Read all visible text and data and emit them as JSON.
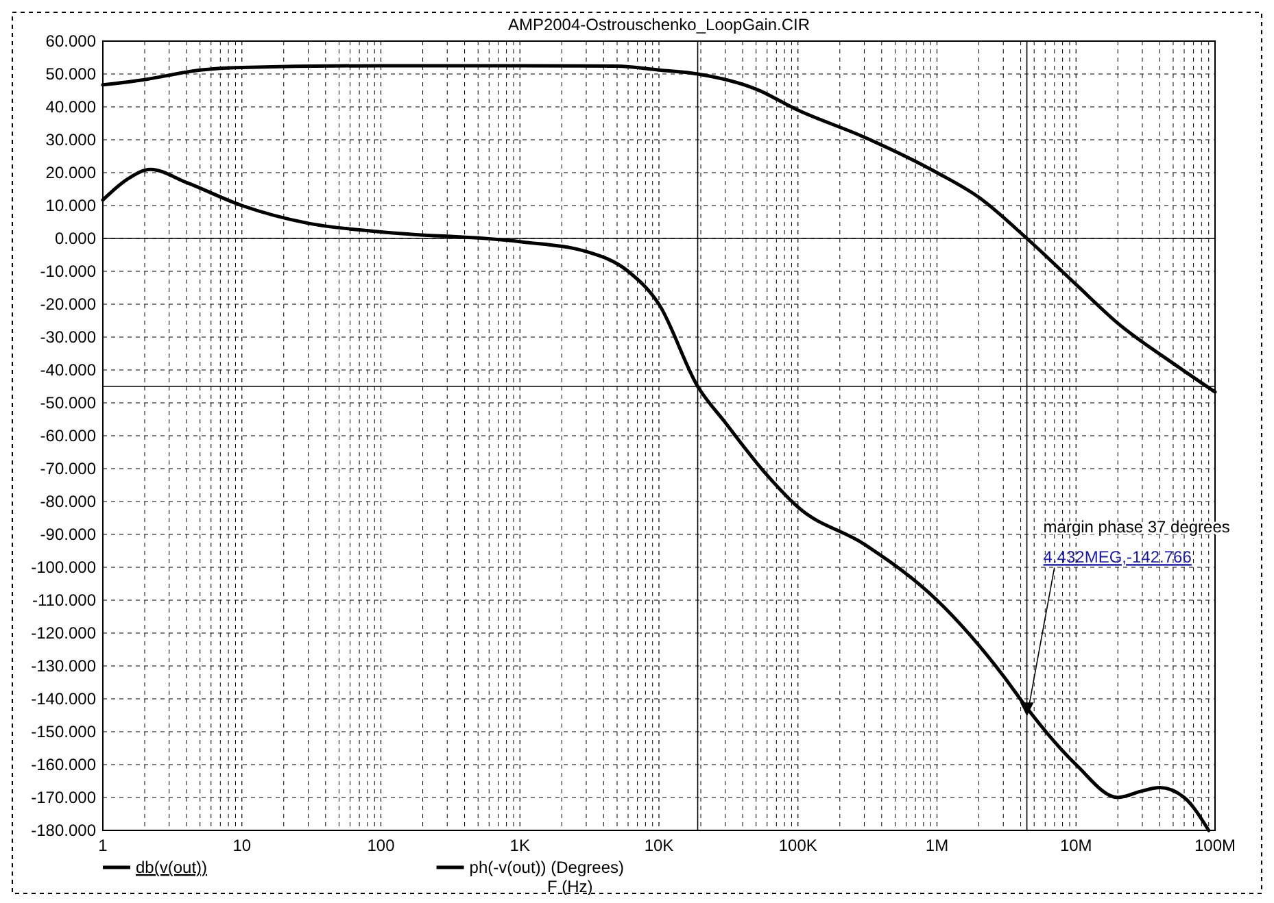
{
  "chart_data": {
    "type": "line",
    "title": "AMP2004-Ostrouschenko_LoopGain.CIR",
    "xlabel": "F (Hz)",
    "log": "x",
    "grid": true,
    "legend": "bottom",
    "line_style": "solid",
    "marker": "none",
    "xlim": [
      1,
      100000000
    ],
    "xticks": [
      {
        "value": 1,
        "label": "1"
      },
      {
        "value": 10,
        "label": "10"
      },
      {
        "value": 100,
        "label": "100"
      },
      {
        "value": 1000,
        "label": "1K"
      },
      {
        "value": 10000,
        "label": "10K"
      },
      {
        "value": 100000,
        "label": "100K"
      },
      {
        "value": 1000000,
        "label": "1M"
      },
      {
        "value": 10000000,
        "label": "10M"
      },
      {
        "value": 100000000,
        "label": "100M"
      }
    ],
    "ylim": [
      -180,
      60
    ],
    "yticks": [
      {
        "value": 60,
        "label": "60.000"
      },
      {
        "value": 50,
        "label": "50.000"
      },
      {
        "value": 40,
        "label": "40.000"
      },
      {
        "value": 30,
        "label": "30.000"
      },
      {
        "value": 20,
        "label": "20.000"
      },
      {
        "value": 10,
        "label": "10.000"
      },
      {
        "value": 0,
        "label": "0.000"
      },
      {
        "value": -10,
        "label": "-10.000"
      },
      {
        "value": -20,
        "label": "-20.000"
      },
      {
        "value": -30,
        "label": "-30.000"
      },
      {
        "value": -40,
        "label": "-40.000"
      },
      {
        "value": -50,
        "label": "-50.000"
      },
      {
        "value": -60,
        "label": "-60.000"
      },
      {
        "value": -70,
        "label": "-70.000"
      },
      {
        "value": -80,
        "label": "-80.000"
      },
      {
        "value": -90,
        "label": "-90.000"
      },
      {
        "value": -100,
        "label": "-100.000"
      },
      {
        "value": -110,
        "label": "-110.000"
      },
      {
        "value": -120,
        "label": "-120.000"
      },
      {
        "value": -130,
        "label": "-130.000"
      },
      {
        "value": -140,
        "label": "-140.000"
      },
      {
        "value": -150,
        "label": "-150.000"
      },
      {
        "value": -160,
        "label": "-160.000"
      },
      {
        "value": -170,
        "label": "-170.000"
      },
      {
        "value": -180,
        "label": "-180.000"
      }
    ],
    "series": [
      {
        "name": "db(v(out))",
        "color": "#000000",
        "x": [
          1,
          2,
          5,
          10,
          100,
          1000,
          5000,
          10000,
          19000,
          50000,
          100000,
          300000,
          1000000,
          2000000,
          4432000,
          10000000,
          20000000,
          50000000,
          100000000
        ],
        "values": [
          46.7,
          48.3,
          51.2,
          52,
          52.5,
          52.5,
          52.4,
          51.2,
          50,
          45.4,
          39,
          30.8,
          20,
          12.5,
          0,
          -14,
          -25.8,
          -38,
          -46.7
        ]
      },
      {
        "name": "ph(-v(out)) (Degrees)",
        "color": "#000000",
        "x": [
          1,
          1.5,
          2.2,
          4,
          10,
          30,
          100,
          1000,
          3000,
          6000,
          10000,
          19000,
          30000,
          60000,
          100000,
          300000,
          1000000,
          3000000,
          4432000,
          10000000,
          20000000,
          30000000,
          40000000,
          60000000,
          90000000
        ],
        "values": [
          11.7,
          18,
          21,
          17,
          10,
          4.6,
          2,
          -1,
          -4,
          -10,
          -20,
          -45,
          -56,
          -72,
          -81.7,
          -93,
          -110,
          -133,
          -142.766,
          -160,
          -170,
          -168,
          -167,
          -170,
          -180
        ]
      }
    ],
    "ref_lines": [
      {
        "axis": "y",
        "value": 0
      },
      {
        "axis": "y",
        "value": -45
      },
      {
        "axis": "x",
        "value": 19000
      },
      {
        "axis": "x",
        "value": 4432000
      }
    ],
    "annotations": [
      "margin phase 37 degrees",
      {
        "text": "4.432MEG,-142.766",
        "x": 4432000,
        "y": -142.766
      }
    ]
  }
}
